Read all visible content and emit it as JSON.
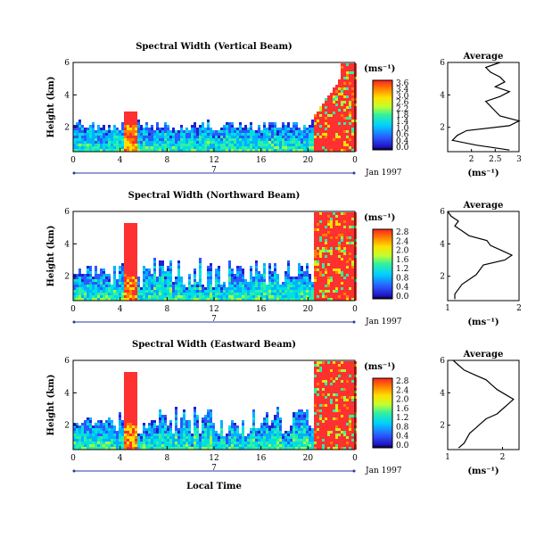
{
  "figure": {
    "x_axis_label": "Local Time",
    "date_label": "Jan 1997",
    "day_label": "7",
    "y_axis_label": "Height (km)",
    "unit_label": "(ms⁻¹)",
    "avg_title": "Average",
    "avg_xlabel": "(ms⁻¹)"
  },
  "chart_data": [
    {
      "type": "heatmap",
      "title": "Spectral Width (Vertical Beam)",
      "xlabel": "Local Time",
      "ylabel": "Height (km)",
      "x_ticks": [
        "0",
        "4",
        "8",
        "12",
        "16",
        "20",
        "0"
      ],
      "xlim": [
        0,
        24
      ],
      "y_ticks": [
        "2",
        "4",
        "6"
      ],
      "ylim": [
        0.5,
        6
      ],
      "colorbar_unit": "(ms⁻¹)",
      "colorbar_ticks": [
        "3.6",
        "3.4",
        "3.0",
        "2.6",
        "2.2",
        "1.8",
        "1.4",
        "1.0",
        "0.6",
        "0.4",
        "0.0"
      ],
      "colors": {
        "low": "#1a1aff",
        "mid": "#00e0e0",
        "high": "#ff3030"
      },
      "avg": {
        "xlim": [
          1.5,
          3
        ],
        "x_ticks": [
          "2",
          "2.5",
          "3"
        ],
        "y_ticks": [
          "2",
          "4",
          "6"
        ],
        "y": [
          0.6,
          0.9,
          1.2,
          1.5,
          1.8,
          2.1,
          2.4,
          2.7,
          3.0,
          3.3,
          3.6,
          3.9,
          4.2,
          4.5,
          4.8,
          5.1,
          5.4,
          5.7,
          6.0
        ],
        "x": [
          2.8,
          2.1,
          1.6,
          1.7,
          1.9,
          2.8,
          3.0,
          2.6,
          2.5,
          2.4,
          2.3,
          2.6,
          2.8,
          2.5,
          2.7,
          2.6,
          2.4,
          2.3,
          2.6
        ]
      }
    },
    {
      "type": "heatmap",
      "title": "Spectral Width (Northward Beam)",
      "xlabel": "Local Time",
      "ylabel": "Height (km)",
      "x_ticks": [
        "0",
        "4",
        "8",
        "12",
        "16",
        "20",
        "0"
      ],
      "xlim": [
        0,
        24
      ],
      "y_ticks": [
        "2",
        "4",
        "6"
      ],
      "ylim": [
        0.5,
        6
      ],
      "colorbar_unit": "(ms⁻¹)",
      "colorbar_ticks": [
        "2.8",
        "2.4",
        "2.0",
        "1.6",
        "1.2",
        "0.8",
        "0.4",
        "0.0"
      ],
      "colors": {
        "low": "#1a1aff",
        "mid": "#00e0e0",
        "high": "#ff3030"
      },
      "avg": {
        "xlim": [
          1,
          2
        ],
        "x_ticks": [
          "1",
          "2"
        ],
        "y_ticks": [
          "2",
          "4",
          "6"
        ],
        "y": [
          0.6,
          0.9,
          1.2,
          1.5,
          1.8,
          2.1,
          2.4,
          2.7,
          3.0,
          3.3,
          3.6,
          3.9,
          4.2,
          4.5,
          4.8,
          5.1,
          5.4,
          5.7,
          6.0
        ],
        "x": [
          1.1,
          1.1,
          1.15,
          1.2,
          1.3,
          1.4,
          1.45,
          1.5,
          1.8,
          1.9,
          1.75,
          1.6,
          1.55,
          1.3,
          1.2,
          1.1,
          1.15,
          1.05,
          1.0
        ]
      }
    },
    {
      "type": "heatmap",
      "title": "Spectral Width (Eastward Beam)",
      "xlabel": "Local Time",
      "ylabel": "Height (km)",
      "x_ticks": [
        "0",
        "4",
        "8",
        "12",
        "16",
        "20",
        "0"
      ],
      "xlim": [
        0,
        24
      ],
      "y_ticks": [
        "2",
        "4",
        "6"
      ],
      "ylim": [
        0.5,
        6
      ],
      "colorbar_unit": "(ms⁻¹)",
      "colorbar_ticks": [
        "2.8",
        "2.4",
        "2.0",
        "1.6",
        "1.2",
        "0.8",
        "0.4",
        "0.0"
      ],
      "colors": {
        "low": "#1a1aff",
        "mid": "#00e0e0",
        "high": "#ff3030"
      },
      "avg": {
        "xlim": [
          1,
          2.3
        ],
        "x_ticks": [
          "1",
          "2"
        ],
        "y_ticks": [
          "2",
          "4",
          "6"
        ],
        "y": [
          0.6,
          0.9,
          1.2,
          1.5,
          1.8,
          2.1,
          2.4,
          2.7,
          3.0,
          3.3,
          3.6,
          3.9,
          4.2,
          4.5,
          4.8,
          5.1,
          5.4,
          5.7,
          6.0
        ],
        "x": [
          1.2,
          1.3,
          1.35,
          1.4,
          1.5,
          1.6,
          1.7,
          1.9,
          2.0,
          2.1,
          2.2,
          2.05,
          1.9,
          1.8,
          1.7,
          1.5,
          1.3,
          1.2,
          1.1
        ]
      }
    }
  ]
}
